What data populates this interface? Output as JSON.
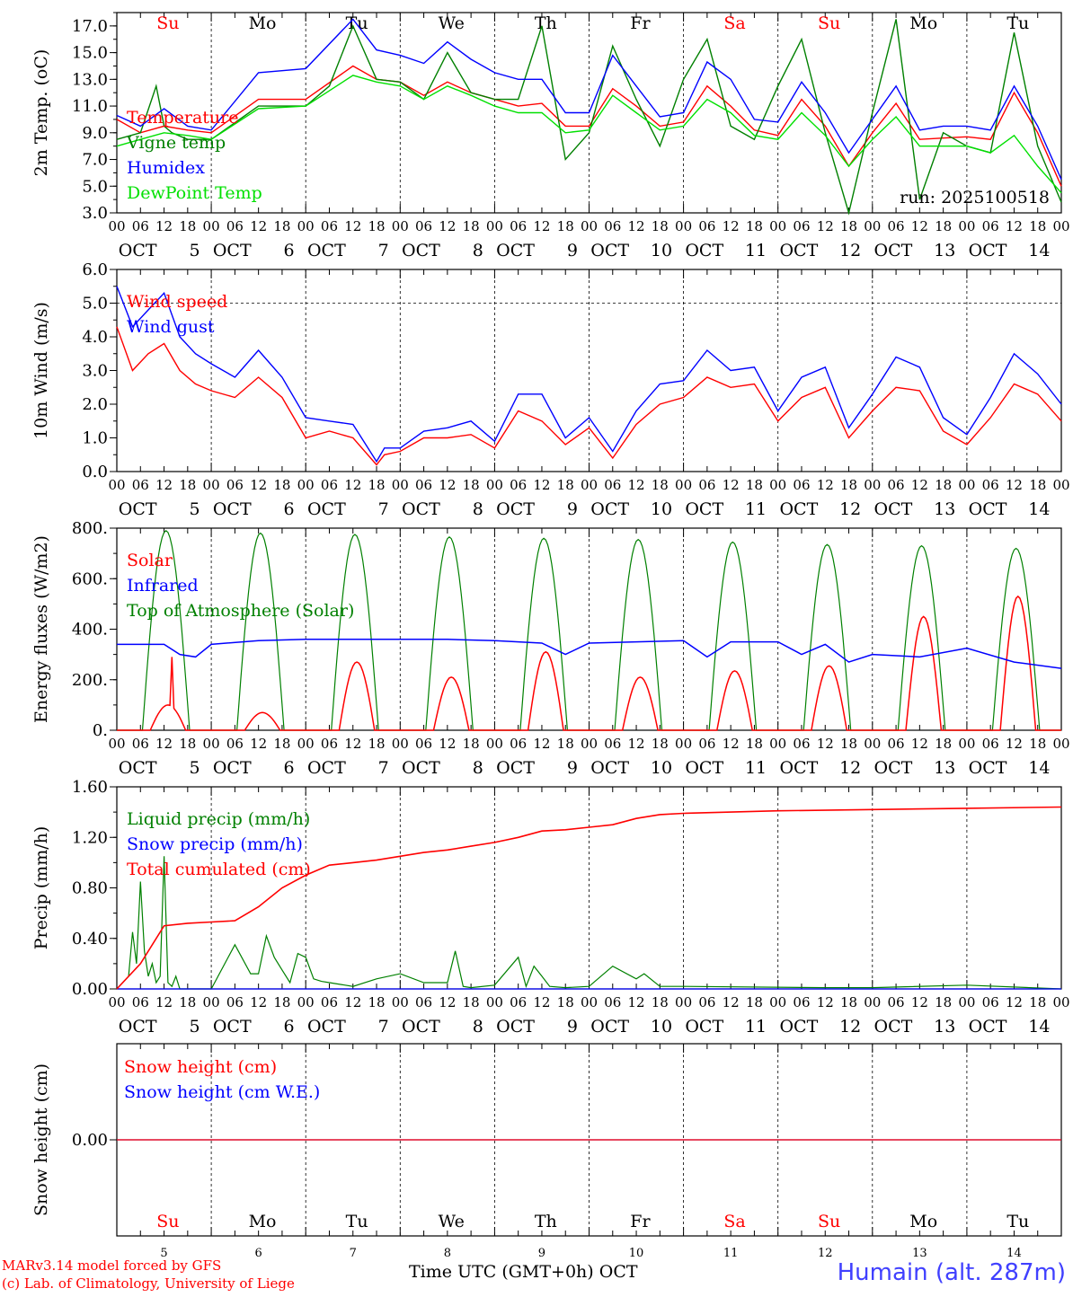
{
  "run_label": "run: 2025100518",
  "day_names": [
    "Su",
    "Mo",
    "Tu",
    "We",
    "Th",
    "Fr",
    "Sa",
    "Su",
    "Mo",
    "Tu"
  ],
  "day_name_colors": [
    "#ff0000",
    "#000000",
    "#000000",
    "#000000",
    "#000000",
    "#000000",
    "#ff0000",
    "#ff0000",
    "#000000",
    "#000000"
  ],
  "hour_ticks": [
    "00",
    "06",
    "12",
    "18"
  ],
  "hour_tick_end": "00",
  "month_label": "OCT",
  "day_numbers": [
    "5",
    "6",
    "7",
    "8",
    "9",
    "10",
    "11",
    "12",
    "13",
    "14"
  ],
  "footer": {
    "credit_line1": "MARv3.14 model forced by GFS",
    "credit_line2": "(c) Lab. of Climatology, University of Liege",
    "x_title": "Time UTC (GMT+0h)",
    "x_title_month": "OCT",
    "station": "Humain (alt. 287m)"
  },
  "colors": {
    "red": "#ff0000",
    "green": "#008000",
    "blue": "#0000ff",
    "lightgreen": "#00e000",
    "black": "#000000"
  },
  "chart_data": [
    {
      "type": "line",
      "ylabel": "2m Temp. (oC)",
      "ylim": [
        3,
        18
      ],
      "yticks": [
        "3.0",
        "5.0",
        "7.0",
        "9.0",
        "11.0",
        "13.0",
        "15.0",
        "17.0"
      ],
      "x_unit": "hours since Oct 5 00 UTC",
      "series": [
        {
          "name": "Temperature",
          "color": "red",
          "x": [
            0,
            6,
            12,
            18,
            24,
            36,
            48,
            60,
            66,
            72,
            78,
            84,
            90,
            96,
            102,
            108,
            114,
            120,
            126,
            132,
            138,
            144,
            150,
            156,
            162,
            168,
            174,
            180,
            186,
            192,
            198,
            204,
            210,
            216,
            222,
            228,
            234,
            240
          ],
          "y": [
            10.0,
            9.0,
            9.5,
            9.2,
            9.0,
            11.5,
            11.5,
            14.0,
            13.0,
            12.8,
            11.8,
            12.8,
            12.0,
            11.5,
            11.0,
            11.2,
            9.5,
            9.5,
            12.3,
            11.0,
            9.5,
            9.8,
            12.5,
            11.0,
            9.2,
            8.8,
            11.5,
            9.5,
            6.5,
            9.0,
            11.2,
            8.5,
            8.6,
            8.7,
            8.5,
            12.0,
            9.0,
            5.0
          ]
        },
        {
          "name": "Vigne temp",
          "color": "green",
          "x": [
            0,
            6,
            10,
            12,
            14,
            18,
            24,
            36,
            48,
            54,
            60,
            66,
            72,
            78,
            84,
            90,
            96,
            102,
            108,
            114,
            120,
            126,
            132,
            138,
            144,
            150,
            156,
            162,
            168,
            174,
            180,
            186,
            192,
            198,
            204,
            210,
            216,
            222,
            228,
            234,
            240
          ],
          "y": [
            8.5,
            9.0,
            12.5,
            9.5,
            9.0,
            8.5,
            8.5,
            11.0,
            11.0,
            12.5,
            17.0,
            13.0,
            12.8,
            11.5,
            15.0,
            12.0,
            11.5,
            11.5,
            17.0,
            7.0,
            9.0,
            15.5,
            11.5,
            8.0,
            13.0,
            16.0,
            9.5,
            8.5,
            12.5,
            16.0,
            9.0,
            3.0,
            10.5,
            17.5,
            4.0,
            9.0,
            8.0,
            7.5,
            16.5,
            8.0,
            3.8
          ]
        },
        {
          "name": "Humidex",
          "color": "blue",
          "x": [
            0,
            6,
            12,
            18,
            24,
            36,
            48,
            60,
            66,
            72,
            78,
            84,
            90,
            96,
            102,
            108,
            114,
            120,
            126,
            132,
            138,
            144,
            150,
            156,
            162,
            168,
            174,
            180,
            186,
            192,
            198,
            204,
            210,
            216,
            222,
            228,
            234,
            240
          ],
          "y": [
            10.3,
            9.5,
            10.8,
            9.5,
            9.2,
            13.5,
            13.8,
            17.5,
            15.2,
            14.8,
            14.2,
            15.8,
            14.5,
            13.5,
            13.0,
            13.0,
            10.5,
            10.5,
            14.8,
            12.5,
            10.2,
            10.5,
            14.3,
            13.0,
            10.0,
            9.8,
            12.8,
            10.5,
            7.5,
            10.0,
            12.5,
            9.2,
            9.5,
            9.5,
            9.2,
            12.5,
            9.5,
            5.5
          ]
        },
        {
          "name": "DewPoint Temp",
          "color": "lightgreen",
          "x": [
            0,
            6,
            12,
            18,
            24,
            36,
            48,
            60,
            66,
            72,
            78,
            84,
            90,
            96,
            102,
            108,
            114,
            120,
            126,
            132,
            138,
            144,
            150,
            156,
            162,
            168,
            174,
            180,
            186,
            192,
            198,
            204,
            210,
            216,
            222,
            228,
            234,
            240
          ],
          "y": [
            8.0,
            8.5,
            9.0,
            8.8,
            8.5,
            10.8,
            11.0,
            13.3,
            12.8,
            12.5,
            11.5,
            12.5,
            11.8,
            11.0,
            10.5,
            10.5,
            9.0,
            9.2,
            11.8,
            10.5,
            9.2,
            9.5,
            11.5,
            10.5,
            8.8,
            8.5,
            10.5,
            8.8,
            6.5,
            8.5,
            10.2,
            8.0,
            8.0,
            8.0,
            7.5,
            8.8,
            6.5,
            4.5
          ]
        }
      ],
      "grid": "vertical dashed at day boundaries",
      "legend_position": "left"
    },
    {
      "type": "line",
      "ylabel": "10m Wind (m/s)",
      "ylim": [
        0,
        6
      ],
      "yticks": [
        "0.0",
        "1.0",
        "2.0",
        "3.0",
        "4.0",
        "5.0",
        "6.0"
      ],
      "reference_line": 5,
      "series": [
        {
          "name": "Wind speed",
          "color": "red",
          "x": [
            0,
            4,
            8,
            12,
            16,
            20,
            24,
            30,
            36,
            42,
            48,
            54,
            60,
            66,
            68,
            72,
            78,
            84,
            90,
            96,
            102,
            108,
            114,
            120,
            126,
            132,
            138,
            144,
            150,
            156,
            162,
            168,
            174,
            180,
            186,
            192,
            198,
            204,
            210,
            216,
            222,
            228,
            234,
            240
          ],
          "y": [
            4.3,
            3.0,
            3.5,
            3.8,
            3.0,
            2.6,
            2.4,
            2.2,
            2.8,
            2.2,
            1.0,
            1.2,
            1.0,
            0.2,
            0.5,
            0.6,
            1.0,
            1.0,
            1.1,
            0.7,
            1.8,
            1.5,
            0.8,
            1.3,
            0.4,
            1.4,
            2.0,
            2.2,
            2.8,
            2.5,
            2.6,
            1.5,
            2.2,
            2.5,
            1.0,
            1.8,
            2.5,
            2.4,
            1.2,
            0.8,
            1.6,
            2.6,
            2.3,
            1.5
          ]
        },
        {
          "name": "Wind gust",
          "color": "blue",
          "x": [
            0,
            4,
            8,
            12,
            16,
            20,
            24,
            30,
            36,
            42,
            48,
            54,
            60,
            66,
            68,
            72,
            78,
            84,
            90,
            96,
            102,
            108,
            114,
            120,
            126,
            132,
            138,
            144,
            150,
            156,
            162,
            168,
            174,
            180,
            186,
            192,
            198,
            204,
            210,
            216,
            222,
            228,
            234,
            240
          ],
          "y": [
            5.5,
            4.3,
            4.8,
            5.3,
            4.0,
            3.5,
            3.2,
            2.8,
            3.6,
            2.8,
            1.6,
            1.5,
            1.4,
            0.3,
            0.7,
            0.7,
            1.2,
            1.3,
            1.5,
            0.9,
            2.3,
            2.3,
            1.0,
            1.6,
            0.6,
            1.8,
            2.6,
            2.7,
            3.6,
            3.0,
            3.1,
            1.8,
            2.8,
            3.1,
            1.3,
            2.3,
            3.4,
            3.1,
            1.6,
            1.1,
            2.2,
            3.5,
            2.9,
            2.0
          ]
        }
      ],
      "grid": "vertical dashed at day boundaries",
      "legend_position": "left"
    },
    {
      "type": "line",
      "ylabel": "Energy fluxes (W/m2)",
      "ylim": [
        0,
        800
      ],
      "yticks": [
        "0.",
        "200.",
        "400.",
        "600.",
        "800."
      ],
      "series": [
        {
          "name": "Solar",
          "color": "red",
          "peaks": [
            100,
            70,
            270,
            210,
            310,
            210,
            235,
            255,
            450,
            530
          ],
          "peak_hour": 13,
          "extra_spike": [
            14,
            290
          ]
        },
        {
          "name": "Infrared",
          "color": "blue",
          "x": [
            0,
            12,
            16,
            20,
            24,
            36,
            48,
            60,
            72,
            84,
            96,
            108,
            114,
            120,
            144,
            150,
            156,
            168,
            174,
            180,
            186,
            192,
            204,
            216,
            228,
            240
          ],
          "y": [
            340,
            340,
            300,
            290,
            340,
            355,
            360,
            360,
            360,
            360,
            355,
            345,
            300,
            345,
            355,
            290,
            350,
            350,
            300,
            340,
            270,
            300,
            290,
            325,
            270,
            245
          ]
        },
        {
          "name": "Top of Atmosphere (Solar)",
          "color": "green",
          "peaks": [
            790,
            780,
            775,
            765,
            760,
            755,
            745,
            735,
            730,
            720
          ],
          "peak_hour": 12.5,
          "half_width": 6
        }
      ],
      "grid": "vertical dashed at day boundaries",
      "legend_position": "left"
    },
    {
      "type": "line",
      "ylabel": "Precip (mm/h)",
      "ylim": [
        0,
        1.6
      ],
      "yticks": [
        "0.00",
        "0.40",
        "0.80",
        "1.20",
        "1.60"
      ],
      "series": [
        {
          "name": "Liquid precip (mm/h)",
          "color": "green",
          "x": [
            0,
            3,
            4,
            5,
            6,
            7,
            8,
            9,
            10,
            11,
            12,
            13,
            14,
            15,
            16,
            18,
            24,
            30,
            34,
            36,
            38,
            40,
            42,
            44,
            46,
            48,
            50,
            52,
            54,
            60,
            66,
            72,
            78,
            84,
            86,
            88,
            90,
            96,
            102,
            104,
            106,
            108,
            110,
            114,
            120,
            126,
            132,
            134,
            138,
            144,
            180,
            192,
            216,
            240
          ],
          "y": [
            0,
            0.1,
            0.45,
            0.2,
            0.85,
            0.3,
            0.1,
            0.2,
            0.05,
            0.1,
            1.05,
            0.05,
            0.02,
            0.1,
            0,
            0,
            0,
            0.35,
            0.12,
            0.12,
            0.42,
            0.25,
            0.15,
            0.05,
            0.28,
            0.25,
            0.08,
            0.06,
            0.05,
            0.02,
            0.08,
            0.12,
            0.05,
            0.05,
            0.3,
            0.02,
            0.01,
            0.03,
            0.25,
            0.02,
            0.18,
            0.1,
            0.02,
            0.01,
            0.02,
            0.18,
            0.08,
            0.12,
            0.02,
            0.02,
            0.01,
            0.01,
            0.03,
            0
          ]
        },
        {
          "name": "Snow precip (mm/h)",
          "color": "blue",
          "x": [
            0,
            240
          ],
          "y": [
            0,
            0
          ]
        },
        {
          "name": "Total cumulated (cm)",
          "color": "red",
          "x": [
            0,
            6,
            12,
            18,
            24,
            30,
            36,
            42,
            48,
            54,
            60,
            66,
            72,
            78,
            84,
            90,
            96,
            102,
            108,
            114,
            120,
            126,
            132,
            138,
            144,
            168,
            192,
            216,
            240
          ],
          "y": [
            0,
            0.2,
            0.5,
            0.52,
            0.53,
            0.54,
            0.65,
            0.8,
            0.9,
            0.98,
            1.0,
            1.02,
            1.05,
            1.08,
            1.1,
            1.13,
            1.16,
            1.2,
            1.25,
            1.26,
            1.28,
            1.3,
            1.35,
            1.38,
            1.39,
            1.41,
            1.42,
            1.43,
            1.44
          ]
        }
      ],
      "grid": "vertical dashed at day boundaries",
      "legend_position": "left"
    },
    {
      "type": "line",
      "ylabel": "Snow height (cm)",
      "yticks": [
        "0.00"
      ],
      "series": [
        {
          "name": "Snow height (cm)",
          "color": "red",
          "x": [
            0,
            240
          ],
          "y": [
            0,
            0
          ]
        },
        {
          "name": "Snow height (cm W.E.)",
          "color": "blue",
          "x": [
            0,
            240
          ],
          "y": [
            0,
            0
          ]
        }
      ],
      "grid": "vertical dashed at day boundaries",
      "legend_position": "left"
    }
  ]
}
